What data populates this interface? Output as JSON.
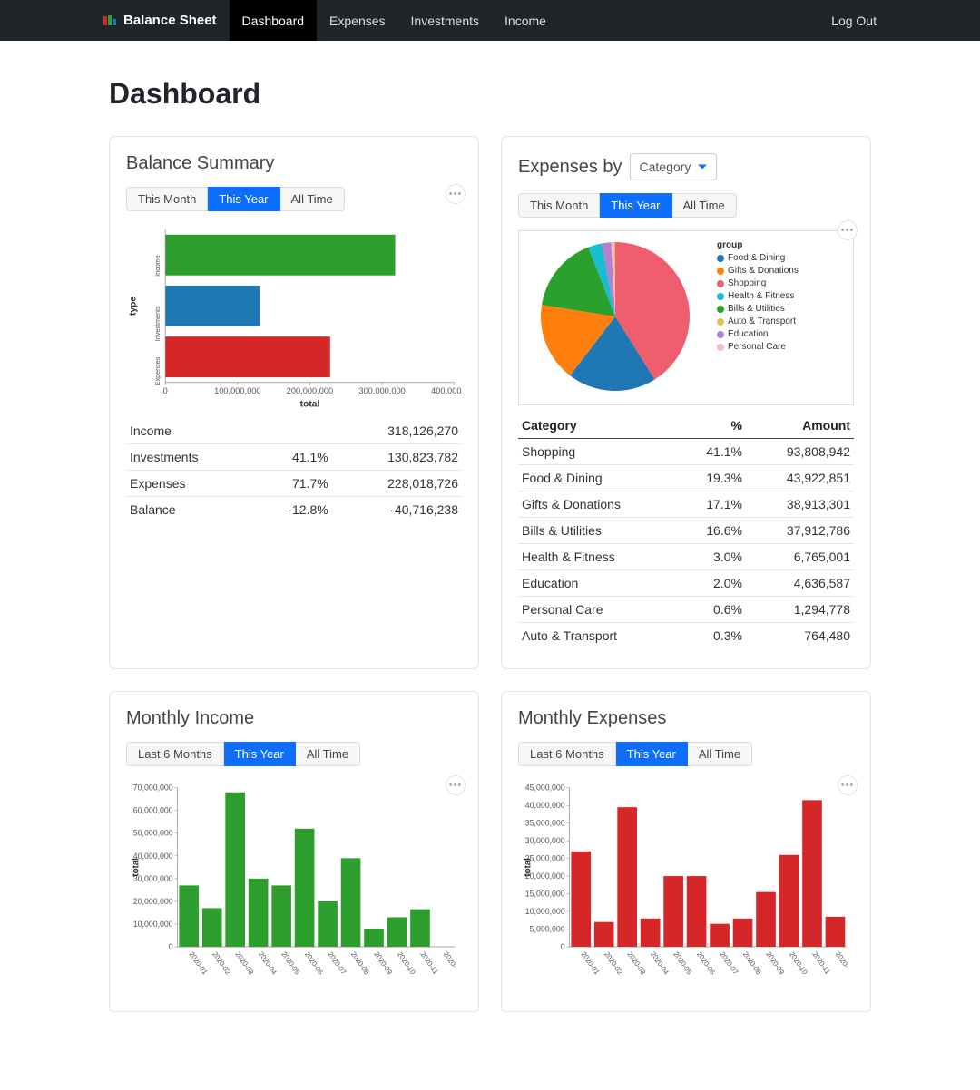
{
  "nav": {
    "brand": "Balance Sheet",
    "items": [
      "Dashboard",
      "Expenses",
      "Investments",
      "Income"
    ],
    "active": "Dashboard",
    "logout": "Log Out"
  },
  "page_title": "Dashboard",
  "balance_summary": {
    "title": "Balance Summary",
    "filters": [
      "This Month",
      "This Year",
      "All Time"
    ],
    "active_filter": "This Year",
    "chart": {
      "type": "bar-horizontal",
      "y_axis_title": "type",
      "x_axis_title": "total",
      "categories": [
        "Income",
        "Investments",
        "Expenses"
      ],
      "values": [
        318126270,
        130823782,
        228018726
      ],
      "colors": [
        "#2e9e2e",
        "#1f77b4",
        "#d62728"
      ],
      "xlim": [
        0,
        400000000
      ],
      "xticks": [
        0,
        100000000,
        200000000,
        300000000,
        400000000
      ],
      "xtick_labels": [
        "0",
        "100,000,000",
        "200,000,000",
        "300,000,000",
        "400,000,000"
      ],
      "background": "#ffffff",
      "bar_height_ratio": 0.8
    },
    "table": {
      "columns": [
        "",
        "%",
        ""
      ],
      "rows": [
        {
          "label": "Income",
          "pct": "",
          "amount": "318,126,270",
          "neg": false
        },
        {
          "label": "Investments",
          "pct": "41.1%",
          "amount": "130,823,782",
          "neg": false
        },
        {
          "label": "Expenses",
          "pct": "71.7%",
          "amount": "228,018,726",
          "neg": false
        },
        {
          "label": "Balance",
          "pct": "-12.8%",
          "amount": "-40,716,238",
          "neg": true
        }
      ]
    }
  },
  "expenses_by": {
    "title": "Expenses by",
    "dropdown_value": "Category",
    "filters": [
      "This Month",
      "This Year",
      "All Time"
    ],
    "active_filter": "This Year",
    "pie": {
      "type": "pie",
      "legend_title": "group",
      "slices": [
        {
          "label": "Shopping",
          "value": 41.1,
          "color": "#ef5e6f"
        },
        {
          "label": "Food & Dining",
          "value": 19.3,
          "color": "#1f77b4"
        },
        {
          "label": "Gifts & Donations",
          "value": 17.1,
          "color": "#ff7f0e"
        },
        {
          "label": "Bills & Utilities",
          "value": 16.6,
          "color": "#2ca02c"
        },
        {
          "label": "Health & Fitness",
          "value": 3.0,
          "color": "#17becf"
        },
        {
          "label": "Education",
          "value": 2.0,
          "color": "#b77fd0"
        },
        {
          "label": "Personal Care",
          "value": 0.6,
          "color": "#f7b6d2"
        },
        {
          "label": "Auto & Transport",
          "value": 0.3,
          "color": "#e5c351"
        }
      ],
      "legend_order": [
        "Food & Dining",
        "Gifts & Donations",
        "Shopping",
        "Health & Fitness",
        "Bills & Utilities",
        "Auto & Transport",
        "Education",
        "Personal Care"
      ]
    },
    "table": {
      "columns": [
        "Category",
        "%",
        "Amount"
      ],
      "rows": [
        {
          "label": "Shopping",
          "pct": "41.1%",
          "amount": "93,808,942"
        },
        {
          "label": "Food & Dining",
          "pct": "19.3%",
          "amount": "43,922,851"
        },
        {
          "label": "Gifts & Donations",
          "pct": "17.1%",
          "amount": "38,913,301"
        },
        {
          "label": "Bills & Utilities",
          "pct": "16.6%",
          "amount": "37,912,786"
        },
        {
          "label": "Health & Fitness",
          "pct": "3.0%",
          "amount": "6,765,001"
        },
        {
          "label": "Education",
          "pct": "2.0%",
          "amount": "4,636,587"
        },
        {
          "label": "Personal Care",
          "pct": "0.6%",
          "amount": "1,294,778"
        },
        {
          "label": "Auto & Transport",
          "pct": "0.3%",
          "amount": "764,480"
        }
      ]
    }
  },
  "monthly_income": {
    "title": "Monthly Income",
    "filters": [
      "Last 6 Months",
      "This Year",
      "All Time"
    ],
    "active_filter": "This Year",
    "chart": {
      "type": "bar",
      "color": "#2e9e2e",
      "y_axis_title": "total",
      "categories": [
        "2020-01",
        "2020-02",
        "2020-03",
        "2020-04",
        "2020-05",
        "2020-06",
        "2020-07",
        "2020-08",
        "2020-09",
        "2020-10",
        "2020-11",
        "2020-"
      ],
      "values": [
        27000000,
        17000000,
        68000000,
        30000000,
        27000000,
        52000000,
        20000000,
        39000000,
        8000000,
        13000000,
        16500000,
        0
      ],
      "ylim": [
        0,
        70000000
      ],
      "ytick_step": 10000000,
      "ytick_labels": [
        "0",
        "10,000,000",
        "20,000,000",
        "30,000,000",
        "40,000,000",
        "50,000,000",
        "60,000,000",
        "70,000,000"
      ],
      "bar_width_ratio": 0.85
    }
  },
  "monthly_expenses": {
    "title": "Monthly Expenses",
    "filters": [
      "Last 6 Months",
      "This Year",
      "All Time"
    ],
    "active_filter": "This Year",
    "chart": {
      "type": "bar",
      "color": "#d62728",
      "y_axis_title": "total",
      "categories": [
        "2020-01",
        "2020-02",
        "2020-03",
        "2020-04",
        "2020-05",
        "2020-06",
        "2020-07",
        "2020-08",
        "2020-09",
        "2020-10",
        "2020-11",
        "2020-"
      ],
      "values": [
        27000000,
        7000000,
        39500000,
        8000000,
        20000000,
        20000000,
        6500000,
        8000000,
        15500000,
        26000000,
        41500000,
        8500000
      ],
      "ylim": [
        0,
        45000000
      ],
      "ytick_step": 5000000,
      "ytick_labels": [
        "0",
        "5,000,000",
        "10,000,000",
        "15,000,000",
        "20,000,000",
        "25,000,000",
        "30,000,000",
        "35,000,000",
        "40,000,000",
        "45,000,000"
      ],
      "bar_width_ratio": 0.85
    }
  }
}
